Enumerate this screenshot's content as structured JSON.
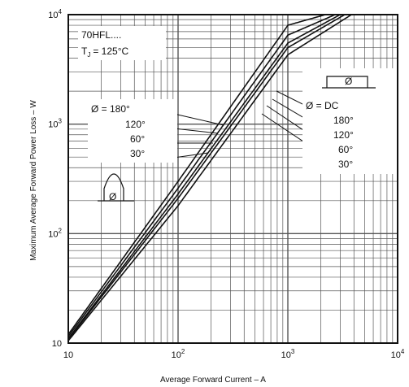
{
  "chart_data": {
    "type": "line",
    "xlabel": "Average Forward Current – A",
    "ylabel": "Maximum Average Forward Power Loss – W",
    "xscale": "log",
    "yscale": "log",
    "xlim": [
      10,
      10000
    ],
    "ylim": [
      10,
      10000
    ],
    "grid": true,
    "x_ticks": [
      {
        "base": "10",
        "exp": ""
      },
      {
        "base": "10",
        "exp": "2"
      },
      {
        "base": "10",
        "exp": "3"
      },
      {
        "base": "10",
        "exp": "4"
      }
    ],
    "y_ticks": [
      {
        "base": "10",
        "exp": ""
      },
      {
        "base": "10",
        "exp": "2"
      },
      {
        "base": "10",
        "exp": "3"
      },
      {
        "base": "10",
        "exp": "4"
      }
    ],
    "annotations": {
      "device": "70HFL....",
      "tj": "T",
      "tj_sub": "J",
      "tj_value": "= 125°C",
      "left_title": "Ø = 180°",
      "left_angles": [
        "120°",
        "60°",
        "30°"
      ],
      "right_title": "Ø = DC",
      "right_angles": [
        "180°",
        "120°",
        "60°",
        "30°"
      ],
      "phi": "Ø"
    },
    "series": [
      {
        "key": "30",
        "x": [
          10,
          100,
          1000,
          2200
        ],
        "y": [
          12,
          300,
          8000,
          10000
        ]
      },
      {
        "key": "60",
        "x": [
          10,
          100,
          1000,
          2700
        ],
        "y": [
          11.5,
          260,
          6500,
          10000
        ]
      },
      {
        "key": "120",
        "x": [
          10,
          100,
          1000,
          3000
        ],
        "y": [
          11,
          230,
          5500,
          10000
        ]
      },
      {
        "key": "180",
        "x": [
          10,
          100,
          1000,
          3300
        ],
        "y": [
          10.8,
          210,
          5000,
          10000
        ]
      },
      {
        "key": "DC",
        "x": [
          10,
          100,
          1000,
          3800
        ],
        "y": [
          10.5,
          180,
          4300,
          10000
        ]
      }
    ]
  }
}
